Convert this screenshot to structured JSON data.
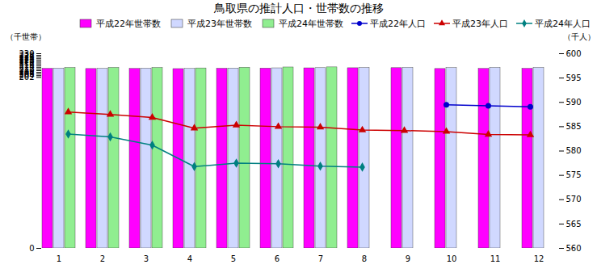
{
  "chart_data": {
    "type": "bar",
    "title": "鳥取県の推計人口・世帯数の推移",
    "ylabel": "（千世帯）",
    "y2label": "（千人）",
    "categories": [
      "1",
      "2",
      "3",
      "4",
      "5",
      "6",
      "7",
      "8",
      "9",
      "10",
      "11",
      "12"
    ],
    "ylim": [
      0,
      230
    ],
    "yticks": [
      0,
      202,
      204,
      206,
      208,
      210,
      212,
      214,
      216,
      218,
      220,
      222,
      224,
      226,
      228,
      230
    ],
    "y2lim": [
      560,
      600
    ],
    "y2ticks": [
      560,
      565,
      570,
      575,
      580,
      585,
      590,
      595,
      600
    ],
    "grid": false,
    "legend": "upper right",
    "series": [
      {
        "name": "平成22年世帯数",
        "type": "bar",
        "color": "#ff00ff",
        "values": [
          212.2,
          212.0,
          212.1,
          211.9,
          212.3,
          212.5,
          212.8,
          212.9,
          213.0,
          212.0,
          212.1,
          212.2
        ]
      },
      {
        "name": "平成23年世帯数",
        "type": "bar",
        "color": "#d0d8ff",
        "values": [
          212.5,
          212.2,
          212.5,
          212.1,
          212.6,
          212.8,
          213.0,
          213.2,
          213.3,
          213.1,
          213.3,
          213.3
        ]
      },
      {
        "name": "平成24年世帯数",
        "type": "bar",
        "color": "#90ee90",
        "values": [
          213.2,
          213.3,
          213.2,
          212.7,
          213.5,
          213.8,
          213.9,
          null,
          null,
          null,
          null,
          null
        ]
      },
      {
        "name": "平成22年人口",
        "type": "line",
        "axis": "y2",
        "color": "#0000cc",
        "marker": "circle",
        "values": [
          null,
          null,
          null,
          null,
          null,
          null,
          null,
          null,
          null,
          589.5,
          589.3,
          589.1
        ]
      },
      {
        "name": "平成23年人口",
        "type": "line",
        "axis": "y2",
        "color": "#cc0000",
        "marker": "triangle",
        "values": [
          588.0,
          587.5,
          586.9,
          584.7,
          585.3,
          585.0,
          584.9,
          584.3,
          584.2,
          584.0,
          583.4,
          583.3
        ]
      },
      {
        "name": "平成24年人口",
        "type": "line",
        "axis": "y2",
        "color": "#008080",
        "marker": "diamond",
        "values": [
          583.5,
          582.9,
          581.2,
          576.8,
          577.5,
          577.4,
          576.9,
          576.7,
          null,
          null,
          null,
          null
        ]
      }
    ]
  }
}
